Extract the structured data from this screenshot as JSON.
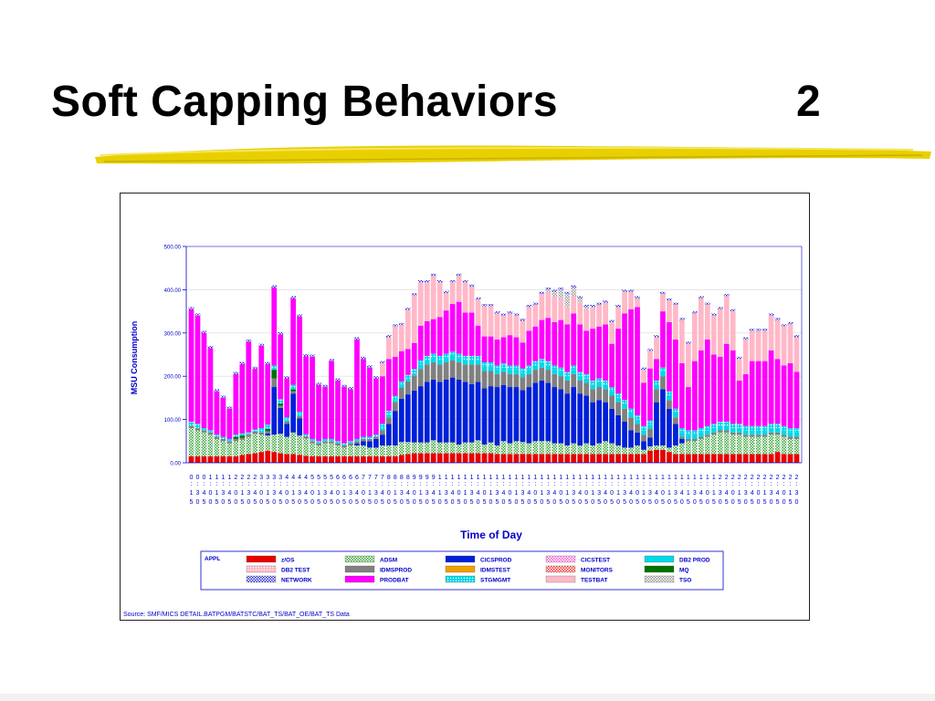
{
  "slide": {
    "title": "Soft Capping Behaviors",
    "number": "2"
  },
  "chart_data": {
    "type": "bar",
    "stacked": true,
    "ylabel": "MSU Consumption",
    "xlabel": "Time of Day",
    "ylim": [
      0,
      500
    ],
    "yticks": [
      "0.00",
      "100.00",
      "200.00",
      "300.00",
      "400.00",
      "500.00"
    ],
    "grid": "horizontal",
    "legend_position": "bottom",
    "legend_title": "APPL",
    "tick_labels": [
      "00:05",
      "00:30",
      "00:45",
      "01:00",
      "01:15",
      "01:30",
      "01:45",
      "02:00",
      "02:15",
      "02:30",
      "02:45",
      "03:00",
      "03:15",
      "03:30",
      "03:45",
      "04:00",
      "04:15",
      "04:30",
      "04:45",
      "05:00",
      "05:15",
      "05:30",
      "05:45",
      "06:00",
      "06:15",
      "06:30",
      "06:45",
      "07:00",
      "07:15",
      "07:30",
      "07:45",
      "08:00",
      "08:15",
      "08:30",
      "08:45",
      "09:00",
      "09:15",
      "09:30",
      "09:45",
      "10:00",
      "10:15",
      "10:30",
      "10:45",
      "11:00",
      "11:15",
      "11:30",
      "11:45",
      "12:00",
      "12:15",
      "12:30",
      "12:45",
      "13:00",
      "13:15",
      "13:30",
      "13:45",
      "14:00",
      "14:15",
      "14:30",
      "14:45",
      "15:00",
      "15:15",
      "15:30",
      "15:45",
      "16:00",
      "16:15",
      "16:30",
      "16:45",
      "17:00",
      "17:15",
      "17:30",
      "17:45",
      "18:00",
      "18:15",
      "18:30",
      "18:45",
      "19:00",
      "19:15",
      "19:30",
      "19:45",
      "20:00",
      "20:15",
      "20:30",
      "20:45",
      "21:00",
      "21:15",
      "21:30",
      "21:45",
      "22:00",
      "22:15",
      "22:30",
      "22:45",
      "23:00",
      "23:15",
      "23:30",
      "23:45",
      "00:00"
    ],
    "tick_rows": [
      "000111122223333444455556666777788889999111111111111111111111111111111111111111111112222222222222222",
      "::::::::::::::::::::::::::::::::::::::::::::::::::::::::::::::::::::::::::::::::::::::::::::::::",
      "134013401340134013401340134013401340134",
      "505050505050505050505050505050505050505050505050505050505050505050505050505050505050505050505050"
    ],
    "series": [
      {
        "name": "z/OS",
        "color": "#e80000",
        "pattern": "solid",
        "values": [
          15,
          15,
          15,
          15,
          15,
          15,
          15,
          15,
          18,
          20,
          22,
          25,
          28,
          25,
          22,
          20,
          20,
          18,
          16,
          15,
          15,
          15,
          15,
          15,
          15,
          15,
          15,
          15,
          15,
          15,
          15,
          15,
          15,
          18,
          20,
          22,
          22,
          22,
          22,
          22,
          22,
          22,
          22,
          22,
          22,
          22,
          22,
          22,
          20,
          20,
          20,
          20,
          20,
          20,
          20,
          20,
          20,
          20,
          20,
          20,
          20,
          20,
          20,
          20,
          20,
          20,
          20,
          20,
          20,
          20,
          20,
          20,
          28,
          30,
          30,
          25,
          20,
          20,
          20,
          20,
          20,
          20,
          20,
          20,
          20,
          20,
          20,
          20,
          20,
          20,
          20,
          20,
          25,
          20,
          20,
          20
        ]
      },
      {
        "name": "ADSM",
        "color": "#3aa33a",
        "pattern": "check",
        "values": [
          65,
          60,
          55,
          50,
          40,
          35,
          30,
          35,
          35,
          40,
          45,
          40,
          35,
          40,
          45,
          40,
          50,
          45,
          40,
          30,
          25,
          30,
          30,
          25,
          20,
          25,
          25,
          25,
          20,
          20,
          25,
          25,
          25,
          30,
          28,
          25,
          25,
          25,
          30,
          25,
          25,
          25,
          20,
          25,
          25,
          30,
          20,
          25,
          20,
          30,
          25,
          30,
          28,
          25,
          30,
          30,
          30,
          25,
          25,
          20,
          25,
          20,
          25,
          20,
          25,
          30,
          25,
          20,
          15,
          15,
          20,
          10,
          10,
          10,
          10,
          10,
          20,
          25,
          30,
          30,
          35,
          40,
          45,
          50,
          50,
          45,
          45,
          40,
          40,
          40,
          40,
          45,
          40,
          40,
          35,
          35
        ]
      },
      {
        "name": "CICSPROD",
        "color": "#0020d8",
        "pattern": "solid",
        "values": [
          0,
          0,
          0,
          0,
          0,
          0,
          0,
          0,
          0,
          0,
          0,
          0,
          5,
          110,
          60,
          30,
          90,
          40,
          0,
          0,
          0,
          0,
          0,
          0,
          0,
          0,
          5,
          10,
          15,
          20,
          25,
          50,
          80,
          100,
          110,
          120,
          130,
          140,
          140,
          140,
          145,
          150,
          150,
          140,
          135,
          135,
          130,
          130,
          135,
          130,
          130,
          125,
          120,
          130,
          135,
          140,
          135,
          130,
          125,
          120,
          130,
          120,
          110,
          100,
          100,
          90,
          80,
          70,
          60,
          40,
          30,
          20,
          20,
          100,
          130,
          90,
          50,
          10,
          0,
          0,
          0,
          0,
          0,
          0,
          0,
          0,
          0,
          0,
          0,
          0,
          0,
          0,
          0,
          0,
          0,
          0
        ]
      },
      {
        "name": "IDMSPROD",
        "color": "#808080",
        "pattern": "solid",
        "values": [
          5,
          5,
          5,
          5,
          5,
          5,
          5,
          5,
          5,
          5,
          5,
          5,
          5,
          20,
          5,
          5,
          5,
          5,
          5,
          5,
          5,
          5,
          5,
          5,
          5,
          5,
          5,
          5,
          5,
          5,
          10,
          15,
          20,
          25,
          30,
          35,
          40,
          40,
          40,
          40,
          40,
          40,
          40,
          40,
          45,
          40,
          40,
          35,
          30,
          30,
          30,
          30,
          30,
          30,
          30,
          30,
          30,
          30,
          30,
          30,
          30,
          30,
          30,
          30,
          30,
          30,
          30,
          30,
          30,
          30,
          20,
          15,
          20,
          30,
          30,
          20,
          15,
          5,
          5,
          5,
          5,
          5,
          5,
          5,
          5,
          5,
          5,
          5,
          5,
          5,
          5,
          5,
          5,
          5,
          5,
          5
        ]
      },
      {
        "name": "DB2 PROD",
        "color": "#00d8e8",
        "pattern": "solid",
        "values": [
          0,
          0,
          0,
          0,
          0,
          0,
          0,
          0,
          0,
          0,
          0,
          0,
          0,
          0,
          0,
          0,
          0,
          0,
          0,
          0,
          0,
          0,
          0,
          0,
          0,
          0,
          0,
          0,
          0,
          0,
          5,
          5,
          5,
          5,
          5,
          5,
          10,
          10,
          10,
          10,
          10,
          10,
          10,
          10,
          10,
          10,
          10,
          10,
          10,
          10,
          10,
          10,
          10,
          10,
          10,
          10,
          10,
          10,
          10,
          10,
          10,
          10,
          10,
          10,
          10,
          10,
          10,
          10,
          10,
          10,
          10,
          10,
          10,
          10,
          10,
          10,
          10,
          10,
          10,
          10,
          10,
          10,
          10,
          10,
          10,
          10,
          10,
          10,
          10,
          10,
          10,
          10,
          10,
          10,
          10,
          10
        ]
      },
      {
        "name": "MQ",
        "color": "#007000",
        "pattern": "solid",
        "values": [
          0,
          0,
          0,
          0,
          0,
          0,
          0,
          5,
          5,
          0,
          0,
          0,
          5,
          20,
          5,
          0,
          5,
          0,
          0,
          0,
          0,
          0,
          0,
          0,
          0,
          0,
          0,
          0,
          0,
          0,
          0,
          0,
          0,
          0,
          0,
          0,
          0,
          0,
          0,
          0,
          0,
          0,
          0,
          0,
          0,
          0,
          0,
          0,
          0,
          0,
          0,
          0,
          0,
          0,
          0,
          0,
          0,
          0,
          0,
          0,
          0,
          0,
          0,
          0,
          0,
          0,
          0,
          0,
          0,
          0,
          0,
          0,
          0,
          0,
          0,
          0,
          0,
          0,
          0,
          0,
          0,
          0,
          0,
          0,
          0,
          0,
          0,
          0,
          0,
          0,
          0,
          0,
          0,
          0,
          0,
          0
        ]
      },
      {
        "name": "STGMGMT",
        "color": "#00d8e8",
        "pattern": "dots",
        "values": [
          10,
          10,
          5,
          5,
          5,
          5,
          5,
          5,
          5,
          5,
          5,
          10,
          10,
          10,
          10,
          10,
          10,
          10,
          5,
          5,
          5,
          5,
          5,
          5,
          5,
          5,
          5,
          5,
          5,
          5,
          10,
          10,
          10,
          10,
          10,
          10,
          10,
          10,
          10,
          10,
          10,
          10,
          10,
          10,
          10,
          10,
          10,
          10,
          10,
          10,
          10,
          10,
          10,
          10,
          10,
          10,
          10,
          10,
          10,
          10,
          10,
          10,
          10,
          10,
          10,
          10,
          10,
          10,
          10,
          10,
          10,
          10,
          10,
          10,
          10,
          10,
          10,
          10,
          10,
          10,
          10,
          10,
          10,
          10,
          10,
          10,
          10,
          10,
          10,
          10,
          10,
          10,
          10,
          10,
          10,
          10
        ]
      },
      {
        "name": "PRODBAT",
        "color": "#ff00ff",
        "pattern": "solid",
        "values": [
          260,
          250,
          220,
          190,
          100,
          90,
          70,
          140,
          160,
          210,
          140,
          190,
          140,
          180,
          150,
          90,
          200,
          220,
          180,
          190,
          130,
          120,
          180,
          140,
          130,
          120,
          230,
          180,
          160,
          130,
          110,
          120,
          90,
          70,
          60,
          60,
          80,
          80,
          80,
          90,
          100,
          110,
          120,
          100,
          100,
          70,
          60,
          60,
          60,
          60,
          70,
          65,
          60,
          80,
          80,
          90,
          100,
          100,
          110,
          110,
          120,
          110,
          100,
          120,
          120,
          130,
          100,
          150,
          200,
          230,
          250,
          100,
          120,
          50,
          130,
          160,
          160,
          150,
          100,
          160,
          180,
          200,
          160,
          150,
          180,
          170,
          100,
          120,
          150,
          150,
          150,
          170,
          150,
          140,
          150,
          130
        ]
      },
      {
        "name": "TESTBAT",
        "color": "#ffb8c8",
        "pattern": "solid",
        "values": [
          0,
          0,
          0,
          0,
          0,
          0,
          0,
          0,
          0,
          0,
          0,
          0,
          0,
          0,
          0,
          0,
          0,
          0,
          0,
          0,
          0,
          0,
          0,
          0,
          0,
          0,
          0,
          0,
          0,
          0,
          30,
          50,
          70,
          60,
          90,
          110,
          100,
          90,
          100,
          80,
          40,
          50,
          60,
          70,
          60,
          60,
          70,
          70,
          60,
          50,
          50,
          50,
          50,
          55,
          50,
          60,
          60,
          60,
          50,
          40,
          40,
          50,
          50,
          50,
          50,
          50,
          50,
          50,
          50,
          40,
          20,
          30,
          40,
          50,
          40,
          50,
          80,
          100,
          100,
          110,
          120,
          80,
          90,
          110,
          110,
          90,
          50,
          80,
          70,
          70,
          70,
          80,
          90,
          90,
          90,
          80
        ]
      },
      {
        "name": "TSO",
        "color": "#9a9a9a",
        "pattern": "check",
        "values": [
          0,
          0,
          0,
          0,
          0,
          0,
          0,
          0,
          0,
          0,
          0,
          0,
          0,
          0,
          0,
          0,
          0,
          0,
          0,
          0,
          0,
          0,
          0,
          0,
          0,
          0,
          0,
          0,
          0,
          0,
          0,
          0,
          0,
          0,
          0,
          0,
          0,
          0,
          0,
          0,
          0,
          0,
          0,
          0,
          0,
          0,
          0,
          0,
          0,
          0,
          0,
          0,
          0,
          0,
          0,
          0,
          5,
          10,
          20,
          30,
          20,
          10,
          5,
          0,
          0,
          0,
          0,
          0,
          0,
          0,
          0,
          0,
          0,
          0,
          0,
          0,
          0,
          0,
          0,
          0,
          0,
          0,
          0,
          0,
          0,
          0,
          0,
          0,
          0,
          0,
          0,
          0,
          0,
          0,
          0,
          0
        ]
      },
      {
        "name": "NETWORK",
        "color": "#3030d8",
        "pattern": "check",
        "values": [
          5,
          5,
          5,
          5,
          5,
          5,
          5,
          5,
          5,
          5,
          5,
          5,
          5,
          5,
          5,
          5,
          5,
          5,
          5,
          5,
          5,
          5,
          5,
          5,
          5,
          5,
          5,
          5,
          5,
          5,
          5,
          5,
          5,
          5,
          5,
          5,
          5,
          5,
          5,
          5,
          5,
          5,
          5,
          5,
          5,
          5,
          5,
          5,
          5,
          5,
          5,
          5,
          5,
          5,
          5,
          5,
          5,
          5,
          5,
          5,
          5,
          5,
          5,
          5,
          5,
          5,
          5,
          5,
          5,
          5,
          5,
          5,
          5,
          5,
          5,
          5,
          5,
          5,
          5,
          5,
          5,
          5,
          5,
          5,
          5,
          5,
          5,
          5,
          5,
          5,
          5,
          5,
          5,
          5,
          5,
          5
        ]
      }
    ],
    "legend": [
      {
        "name": "z/OS",
        "color": "#e80000",
        "pattern": "solid"
      },
      {
        "name": "ADSM",
        "color": "#3aa33a",
        "pattern": "check"
      },
      {
        "name": "CICSPROD",
        "color": "#0020d8",
        "pattern": "solid"
      },
      {
        "name": "CICSTEST",
        "color": "#ff60d0",
        "pattern": "check"
      },
      {
        "name": "DB2 PROD",
        "color": "#00d8e8",
        "pattern": "solid"
      },
      {
        "name": "DB2 TEST",
        "color": "#ffb8c8",
        "pattern": "dots"
      },
      {
        "name": "IDMSPROD",
        "color": "#808080",
        "pattern": "solid"
      },
      {
        "name": "IDMSTEST",
        "color": "#f0a000",
        "pattern": "solid"
      },
      {
        "name": "MONITORS",
        "color": "#ff3030",
        "pattern": "check"
      },
      {
        "name": "MQ",
        "color": "#007000",
        "pattern": "solid"
      },
      {
        "name": "NETWORK",
        "color": "#3030d8",
        "pattern": "check"
      },
      {
        "name": "PRODBAT",
        "color": "#ff00ff",
        "pattern": "solid"
      },
      {
        "name": "STGMGMT",
        "color": "#00d8e8",
        "pattern": "dots"
      },
      {
        "name": "TESTBAT",
        "color": "#ffb8c8",
        "pattern": "solid"
      },
      {
        "name": "TSO",
        "color": "#9a9a9a",
        "pattern": "check"
      }
    ],
    "source": "Source: SMF/MICS DETAIL.BATPGM/BATSTC/BAT_TS/BAT_OE/BAT_TS Data"
  }
}
